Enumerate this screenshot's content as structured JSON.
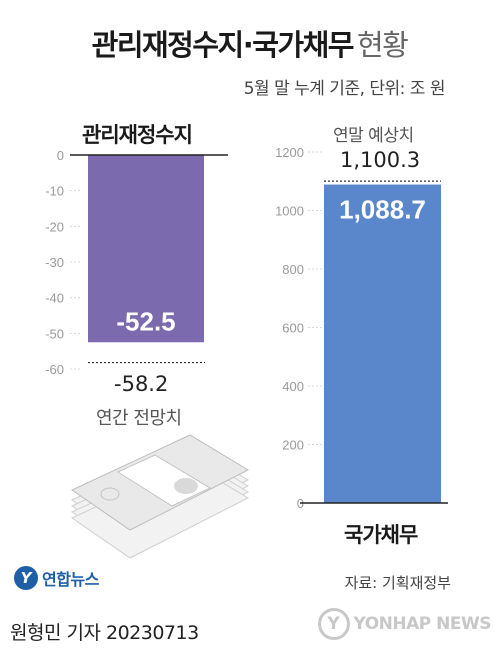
{
  "header": {
    "title": "관리재정수지·국가채무",
    "title_suffix": "현황",
    "unit_note": "5월 말 누계 기준, 단위: 조 원"
  },
  "colors": {
    "left_bar": "#7b6aae",
    "right_bar": "#5a87cb",
    "axis_text": "#9a9a9a"
  },
  "chart_data": [
    {
      "type": "bar",
      "title": "관리재정수지",
      "categories": [
        "관리재정수지"
      ],
      "values": [
        -52.5
      ],
      "ylim": [
        -60,
        0
      ],
      "yticks": [
        0,
        -10,
        -20,
        -30,
        -40,
        -50,
        -60
      ],
      "value_label": "-52.5",
      "reference": {
        "label": "연간 전망치",
        "value": -58.2,
        "value_label": "-58.2"
      }
    },
    {
      "type": "bar",
      "title": "국가채무",
      "categories": [
        "국가채무"
      ],
      "values": [
        1088.7
      ],
      "ylim": [
        0,
        1200
      ],
      "yticks": [
        0,
        200,
        400,
        600,
        800,
        1000,
        1200
      ],
      "value_label": "1,088.7",
      "reference": {
        "label": "연말 예상치",
        "value": 1100.3,
        "value_label": "1,100.3"
      }
    }
  ],
  "footer": {
    "source": "자료: 기획재정부",
    "byline": "원형민 기자  20230713",
    "logo_left_text": "연합뉴스",
    "logo_right_text": "YONHAP NEWS"
  }
}
